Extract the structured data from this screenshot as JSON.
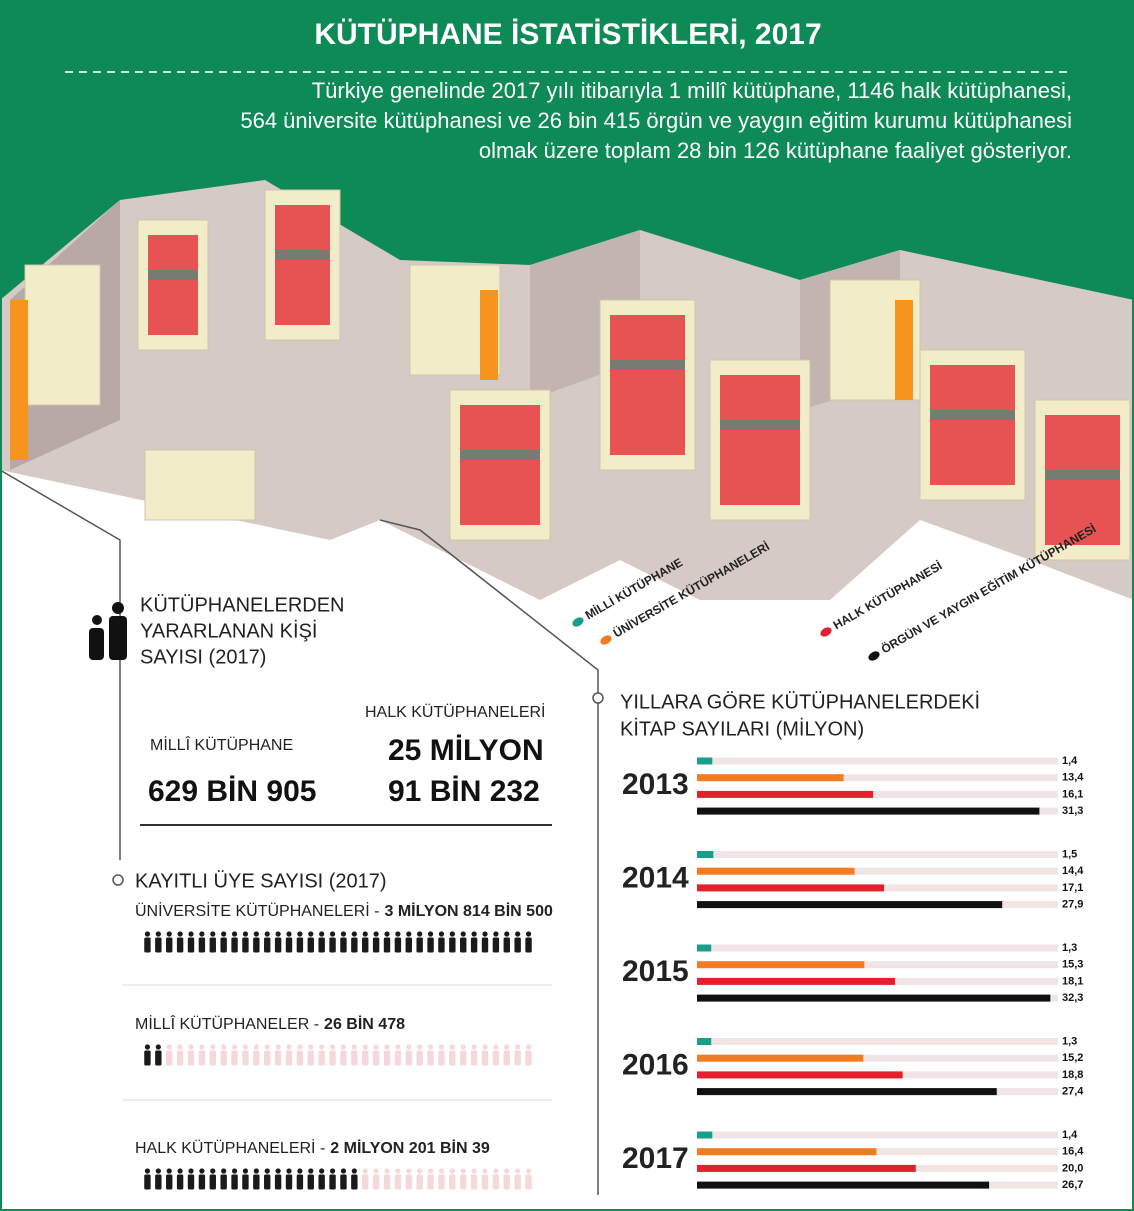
{
  "header": {
    "title": "KÜTÜPHANE İSTATİSTİKLERİ, 2017",
    "description": [
      "Türkiye genelinde 2017 yılı itibarıyla 1 millî kütüphane, 1146 halk kütüphanesi,",
      "564 üniversite kütüphanesi ve 26 bin 415 örgün ve yaygın eğitim kurumu kütüphanesi",
      "olmak üzere toplam 28 bin 126 kütüphane faaliyet gösteriyor."
    ]
  },
  "visitors": {
    "heading": [
      "KÜTÜPHANELERDEN",
      "YARARLANAN KİŞİ",
      "SAYISI (2017)"
    ],
    "milli_label": "MİLLÎ KÜTÜPHANE",
    "milli_value": "629 BİN 905",
    "halk_label": "HALK KÜTÜPHANELERİ",
    "halk_value": [
      "25 MİLYON",
      "91 BİN 232"
    ]
  },
  "members": {
    "heading": "KAYITLI ÜYE SAYISI (2017)",
    "items": [
      {
        "label": "ÜNİVERSİTE KÜTÜPHANELERİ -",
        "value": "3 MİLYON 814 BİN 500",
        "filled": 36,
        "total": 36
      },
      {
        "label": "MİLLÎ KÜTÜPHANELER -",
        "value": "26 BİN 478",
        "filled": 2,
        "total": 36
      },
      {
        "label": "HALK KÜTÜPHANELERİ -",
        "value": "2 MİLYON 201 BİN 39",
        "filled": 20,
        "total": 36
      }
    ]
  },
  "chart_data": {
    "type": "bar",
    "orientation": "horizontal",
    "title": [
      "YILLARA GÖRE KÜTÜPHANELERDEKİ",
      "KİTAP SAYILARI (MİLYON)"
    ],
    "categories": [
      "2013",
      "2014",
      "2015",
      "2016",
      "2017"
    ],
    "xlim": [
      0,
      33
    ],
    "track_color": "#f1e4e4",
    "series": [
      {
        "name": "MİLLİ KÜTÜPHANE",
        "color": "#1a9e8c",
        "values": [
          1.4,
          1.5,
          1.3,
          1.3,
          1.4
        ],
        "value_labels": [
          "1,4",
          "1,5",
          "1,3",
          "1,3",
          "1,4"
        ]
      },
      {
        "name": "ÜNİVERSİTE KÜTÜPHANELERİ",
        "color": "#f47b20",
        "values": [
          13.4,
          14.4,
          15.3,
          15.2,
          16.4
        ],
        "value_labels": [
          "13,4",
          "14,4",
          "15,3",
          "15,2",
          "16,4"
        ]
      },
      {
        "name": "HALK KÜTÜPHANESİ",
        "color": "#e3202b",
        "values": [
          16.1,
          17.1,
          18.1,
          18.8,
          20.0
        ],
        "value_labels": [
          "16,1",
          "17,1",
          "18,1",
          "18,8",
          "20,0"
        ]
      },
      {
        "name": "ÖRGÜN VE YAYGIN EĞİTİM KÜTÜPHANESİ",
        "color": "#111111",
        "values": [
          31.3,
          27.9,
          32.3,
          27.4,
          26.7
        ],
        "value_labels": [
          "31,3",
          "27,9",
          "32,3",
          "27,4",
          "26,7"
        ]
      }
    ]
  }
}
